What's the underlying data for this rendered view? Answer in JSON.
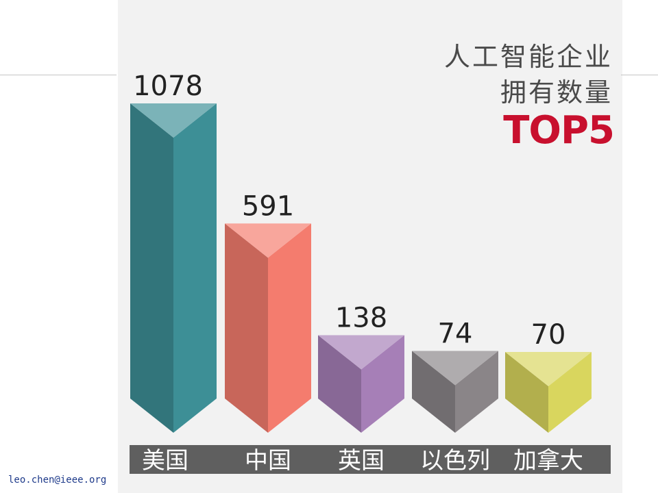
{
  "title": {
    "line1": "人工智能企业",
    "line2": "拥有数量",
    "line3": "TOP5"
  },
  "footer": {
    "email": "leo.chen@ieee.org"
  },
  "chart_data": {
    "type": "bar",
    "categories": [
      "美国",
      "中国",
      "英国",
      "以色列",
      "加拿大"
    ],
    "values": [
      1078,
      591,
      138,
      74,
      70
    ],
    "colors": [
      "#3d8f96",
      "#f47c6e",
      "#a67fb7",
      "#8a8588",
      "#d9d65e"
    ],
    "title": "人工智能企业拥有数量 TOP5",
    "xlabel": "",
    "ylabel": "",
    "grid": false,
    "legend": "none"
  }
}
